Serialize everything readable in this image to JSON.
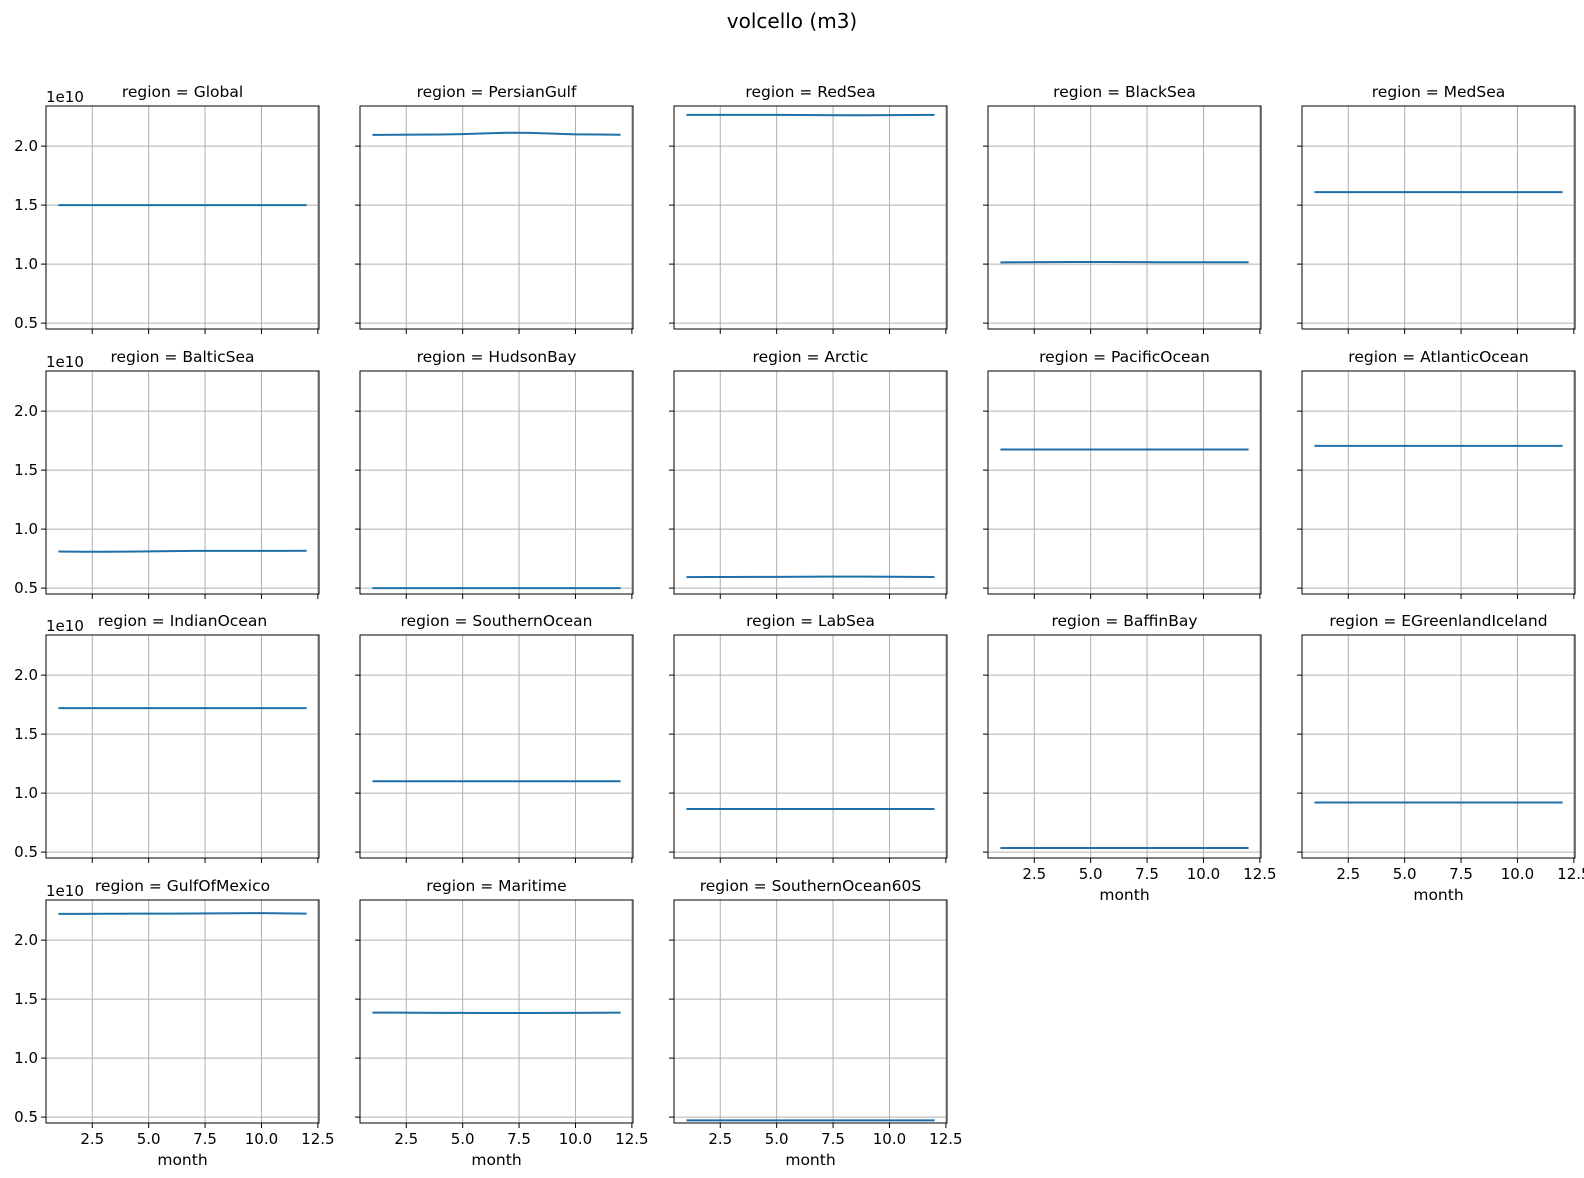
{
  "figure": {
    "title": "volcello (m3)"
  },
  "chart_data": {
    "type": "line",
    "title": "volcello (m3)",
    "xlabel": "month",
    "ylabel": "",
    "y_offset_text": "1e10",
    "yaxis_inverted": true,
    "xlim": [
      0.45,
      12.55
    ],
    "ylim": [
      2.34,
      0.45
    ],
    "x_ticks": [
      2.5,
      5.0,
      7.5,
      10.0,
      12.5
    ],
    "x_tick_labels": [
      "2.5",
      "5.0",
      "7.5",
      "10.0",
      "12.5"
    ],
    "y_ticks": [
      0.5,
      1.0,
      1.5,
      2.0
    ],
    "y_tick_labels": [
      "0.5",
      "1.0",
      "1.5",
      "2.0"
    ],
    "grid": true,
    "line_color": "#1f6fa8",
    "x": [
      1,
      2,
      3,
      4,
      5,
      6,
      7,
      8,
      9,
      10,
      11,
      12
    ],
    "panels": [
      {
        "title": "region = Global",
        "values": [
          1.5,
          1.5,
          1.5,
          1.5,
          1.5,
          1.5,
          1.5,
          1.5,
          1.5,
          1.5,
          1.5,
          1.5
        ]
      },
      {
        "title": "region = PersianGulf",
        "values": [
          2.095,
          2.096,
          2.097,
          2.099,
          2.102,
          2.108,
          2.113,
          2.112,
          2.106,
          2.1,
          2.098,
          2.096
        ]
      },
      {
        "title": "region = RedSea",
        "values": [
          2.265,
          2.265,
          2.265,
          2.265,
          2.265,
          2.264,
          2.263,
          2.262,
          2.262,
          2.263,
          2.264,
          2.265
        ]
      },
      {
        "title": "region = BlackSea",
        "values": [
          1.015,
          1.016,
          1.017,
          1.018,
          1.018,
          1.018,
          1.017,
          1.016,
          1.016,
          1.016,
          1.016,
          1.016
        ]
      },
      {
        "title": "region = MedSea",
        "values": [
          1.61,
          1.61,
          1.61,
          1.61,
          1.61,
          1.61,
          1.61,
          1.61,
          1.61,
          1.61,
          1.61,
          1.61
        ]
      },
      {
        "title": "region = BalticSea",
        "values": [
          0.81,
          0.808,
          0.808,
          0.809,
          0.811,
          0.813,
          0.815,
          0.816,
          0.816,
          0.816,
          0.816,
          0.817
        ]
      },
      {
        "title": "region = HudsonBay",
        "values": [
          0.5,
          0.5,
          0.5,
          0.5,
          0.5,
          0.5,
          0.5,
          0.5,
          0.5,
          0.5,
          0.5,
          0.5
        ]
      },
      {
        "title": "region = Arctic",
        "values": [
          0.593,
          0.594,
          0.594,
          0.595,
          0.595,
          0.596,
          0.597,
          0.597,
          0.597,
          0.596,
          0.595,
          0.594
        ]
      },
      {
        "title": "region = PacificOcean",
        "values": [
          1.675,
          1.675,
          1.675,
          1.675,
          1.675,
          1.675,
          1.675,
          1.675,
          1.675,
          1.675,
          1.675,
          1.675
        ]
      },
      {
        "title": "region = AtlanticOcean",
        "values": [
          1.705,
          1.705,
          1.705,
          1.705,
          1.705,
          1.705,
          1.705,
          1.705,
          1.705,
          1.705,
          1.705,
          1.705
        ]
      },
      {
        "title": "region = IndianOcean",
        "values": [
          1.72,
          1.72,
          1.72,
          1.72,
          1.72,
          1.72,
          1.72,
          1.72,
          1.72,
          1.72,
          1.72,
          1.72
        ]
      },
      {
        "title": "region = SouthernOcean",
        "values": [
          1.1,
          1.1,
          1.1,
          1.1,
          1.1,
          1.1,
          1.1,
          1.1,
          1.1,
          1.1,
          1.1,
          1.1
        ]
      },
      {
        "title": "region = LabSea",
        "values": [
          0.865,
          0.865,
          0.865,
          0.865,
          0.865,
          0.865,
          0.865,
          0.865,
          0.865,
          0.865,
          0.865,
          0.865
        ]
      },
      {
        "title": "region = BaffinBay",
        "values": [
          0.535,
          0.535,
          0.535,
          0.535,
          0.535,
          0.535,
          0.535,
          0.535,
          0.535,
          0.535,
          0.535,
          0.535
        ]
      },
      {
        "title": "region = EGreenlandIceland",
        "values": [
          0.92,
          0.92,
          0.92,
          0.92,
          0.92,
          0.92,
          0.92,
          0.92,
          0.92,
          0.92,
          0.92,
          0.92
        ]
      },
      {
        "title": "region = GulfOfMexico",
        "values": [
          2.222,
          2.222,
          2.223,
          2.224,
          2.225,
          2.225,
          2.226,
          2.227,
          2.228,
          2.229,
          2.227,
          2.225
        ]
      },
      {
        "title": "region = Maritime",
        "values": [
          1.385,
          1.385,
          1.384,
          1.383,
          1.383,
          1.382,
          1.382,
          1.382,
          1.383,
          1.383,
          1.384,
          1.385
        ]
      },
      {
        "title": "region = SouthernOcean60S",
        "values": [
          0.472,
          0.472,
          0.472,
          0.472,
          0.472,
          0.472,
          0.472,
          0.472,
          0.472,
          0.472,
          0.472,
          0.472
        ]
      }
    ]
  }
}
